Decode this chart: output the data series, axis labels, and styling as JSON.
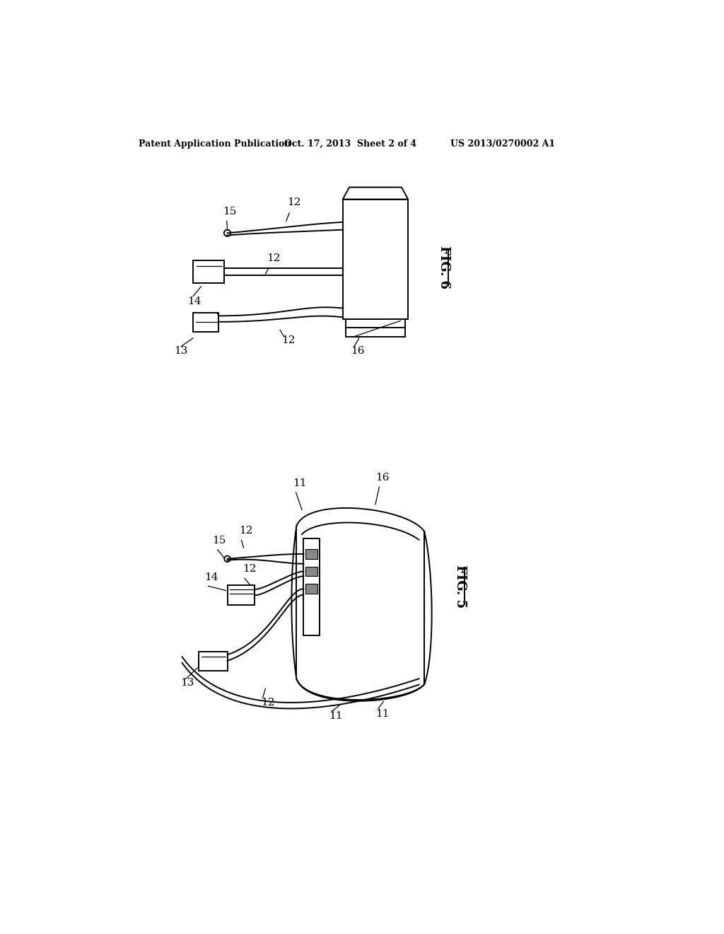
{
  "header_left": "Patent Application Publication",
  "header_center": "Oct. 17, 2013  Sheet 2 of 4",
  "header_right": "US 2013/0270002 A1",
  "fig6_label": "FIG. 6",
  "fig5_label": "FIG. 5",
  "bg_color": "#ffffff",
  "line_color": "#000000",
  "lw": 1.4,
  "tlw": 0.9,
  "fs": 11,
  "hfs": 9
}
